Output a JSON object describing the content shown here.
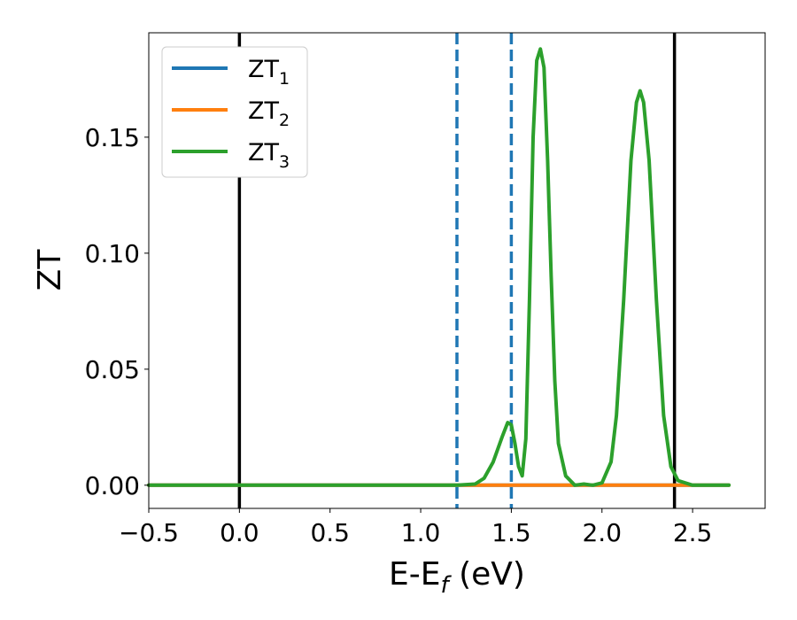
{
  "chart_data": {
    "type": "line",
    "xlabel": "E-E",
    "xlabel_sub": "f",
    "xlabel_unit": " (eV)",
    "ylabel": "ZT",
    "xlim": [
      -0.5,
      2.9
    ],
    "ylim": [
      -0.01,
      0.195
    ],
    "xticks": [
      -0.5,
      0.0,
      0.5,
      1.0,
      1.5,
      2.0,
      2.5
    ],
    "xtick_labels": [
      "−0.5",
      "0.0",
      "0.5",
      "1.0",
      "1.5",
      "2.0",
      "2.5"
    ],
    "yticks": [
      0.0,
      0.05,
      0.1,
      0.15
    ],
    "ytick_labels": [
      "0.00",
      "0.05",
      "0.10",
      "0.15"
    ],
    "grid": false,
    "legend_position": "upper-left",
    "vlines": [
      {
        "x": 0.0,
        "color": "#000000",
        "style": "solid"
      },
      {
        "x": 2.4,
        "color": "#000000",
        "style": "solid"
      },
      {
        "x": 1.2,
        "color": "#1f77b4",
        "style": "dashed"
      },
      {
        "x": 1.5,
        "color": "#1f77b4",
        "style": "dashed"
      }
    ],
    "series": [
      {
        "name": "ZT",
        "sub": "1",
        "color": "#1f77b4",
        "points": [
          [
            -0.5,
            0.0
          ],
          [
            2.7,
            0.0
          ]
        ]
      },
      {
        "name": "ZT",
        "sub": "2",
        "color": "#ff7f0e",
        "points": [
          [
            -0.5,
            0.0
          ],
          [
            2.7,
            0.0
          ]
        ]
      },
      {
        "name": "ZT",
        "sub": "3",
        "color": "#2ca02c",
        "points": [
          [
            -0.5,
            0.0
          ],
          [
            1.2,
            0.0
          ],
          [
            1.3,
            0.0005
          ],
          [
            1.35,
            0.003
          ],
          [
            1.4,
            0.01
          ],
          [
            1.45,
            0.021
          ],
          [
            1.48,
            0.027
          ],
          [
            1.5,
            0.026
          ],
          [
            1.52,
            0.018
          ],
          [
            1.54,
            0.008
          ],
          [
            1.56,
            0.004
          ],
          [
            1.58,
            0.02
          ],
          [
            1.6,
            0.08
          ],
          [
            1.62,
            0.15
          ],
          [
            1.64,
            0.183
          ],
          [
            1.66,
            0.188
          ],
          [
            1.68,
            0.18
          ],
          [
            1.7,
            0.14
          ],
          [
            1.72,
            0.09
          ],
          [
            1.74,
            0.045
          ],
          [
            1.76,
            0.018
          ],
          [
            1.8,
            0.004
          ],
          [
            1.85,
            0.0
          ],
          [
            1.9,
            0.0005
          ],
          [
            1.95,
            0.0
          ],
          [
            2.0,
            0.001
          ],
          [
            2.05,
            0.01
          ],
          [
            2.08,
            0.03
          ],
          [
            2.12,
            0.08
          ],
          [
            2.16,
            0.14
          ],
          [
            2.19,
            0.165
          ],
          [
            2.21,
            0.17
          ],
          [
            2.23,
            0.165
          ],
          [
            2.26,
            0.14
          ],
          [
            2.3,
            0.08
          ],
          [
            2.34,
            0.03
          ],
          [
            2.38,
            0.008
          ],
          [
            2.42,
            0.002
          ],
          [
            2.5,
            0.0
          ],
          [
            2.7,
            0.0
          ]
        ]
      }
    ]
  }
}
